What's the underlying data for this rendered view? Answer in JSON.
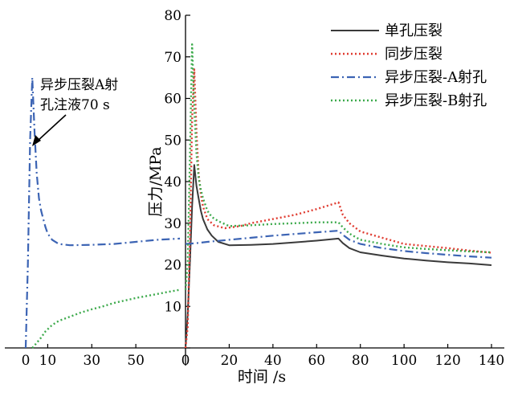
{
  "chart_data": {
    "type": "line",
    "title": "",
    "xlabel": "时间 /s",
    "ylabel": "压力/MPa",
    "ylim": [
      0,
      80
    ],
    "yticks": [
      "0",
      "10",
      "20",
      "30",
      "40",
      "50",
      "60",
      "70",
      "80"
    ],
    "x_left_segment": {
      "range": [
        0,
        70
      ],
      "tick_labels": [
        "0",
        "10",
        "30",
        "50"
      ],
      "tick_values": [
        0,
        10,
        30,
        50
      ]
    },
    "x_right_segment": {
      "range": [
        0,
        140
      ],
      "tick_labels": [
        "0",
        "20",
        "40",
        "60",
        "80",
        "100",
        "120",
        "140"
      ],
      "tick_values": [
        0,
        20,
        40,
        60,
        80,
        100,
        120,
        140
      ]
    },
    "grid": false,
    "legend_position": "top-right",
    "annotation": {
      "line1": "异步压裂A射",
      "line2": "孔注液70 s"
    },
    "series": [
      {
        "name": "单孔压裂",
        "segment": "right",
        "color": "#3a3a3a",
        "style": "solid",
        "points": [
          [
            0,
            0
          ],
          [
            1,
            8
          ],
          [
            2,
            20
          ],
          [
            3,
            34
          ],
          [
            4,
            44
          ],
          [
            5,
            39
          ],
          [
            6,
            36
          ],
          [
            7,
            33
          ],
          [
            8,
            31
          ],
          [
            10,
            28.5
          ],
          [
            12,
            27
          ],
          [
            15,
            25.5
          ],
          [
            20,
            24.7
          ],
          [
            30,
            24.8
          ],
          [
            40,
            25
          ],
          [
            50,
            25.4
          ],
          [
            60,
            25.8
          ],
          [
            70,
            26.3
          ],
          [
            72,
            25.2
          ],
          [
            75,
            24
          ],
          [
            80,
            23
          ],
          [
            90,
            22.2
          ],
          [
            100,
            21.5
          ],
          [
            110,
            21
          ],
          [
            120,
            20.6
          ],
          [
            130,
            20.3
          ],
          [
            140,
            19.9
          ]
        ]
      },
      {
        "name": "同步压裂",
        "segment": "right",
        "color": "#e03c31",
        "style": "dotted",
        "points": [
          [
            0,
            0
          ],
          [
            1,
            5
          ],
          [
            2,
            25
          ],
          [
            3,
            55
          ],
          [
            4,
            67
          ],
          [
            5,
            52
          ],
          [
            6,
            42
          ],
          [
            7,
            37
          ],
          [
            8,
            34
          ],
          [
            10,
            31
          ],
          [
            13,
            29.5
          ],
          [
            18,
            28.8
          ],
          [
            25,
            29.3
          ],
          [
            30,
            30
          ],
          [
            40,
            31
          ],
          [
            50,
            32
          ],
          [
            60,
            33.4
          ],
          [
            70,
            35
          ],
          [
            72,
            32
          ],
          [
            75,
            30
          ],
          [
            80,
            28
          ],
          [
            90,
            26.5
          ],
          [
            100,
            25
          ],
          [
            110,
            24.5
          ],
          [
            120,
            24
          ],
          [
            130,
            23.4
          ],
          [
            140,
            22.9
          ]
        ]
      },
      {
        "name": "异步压裂-A射孔",
        "segment": "both",
        "color": "#3c64b4",
        "style": "dashdot",
        "left_points": [
          [
            0,
            0
          ],
          [
            1,
            20
          ],
          [
            2,
            50
          ],
          [
            3,
            65
          ],
          [
            4,
            52
          ],
          [
            5,
            42
          ],
          [
            6,
            36
          ],
          [
            7,
            33
          ],
          [
            8,
            31
          ],
          [
            9,
            29
          ],
          [
            10,
            27.5
          ],
          [
            12,
            26
          ],
          [
            15,
            25
          ],
          [
            20,
            24.7
          ],
          [
            30,
            24.8
          ],
          [
            40,
            25
          ],
          [
            50,
            25.5
          ],
          [
            60,
            26
          ],
          [
            70,
            26.3
          ]
        ],
        "points": [
          [
            0,
            25
          ],
          [
            5,
            25.2
          ],
          [
            10,
            25.5
          ],
          [
            20,
            26
          ],
          [
            30,
            26.5
          ],
          [
            40,
            27
          ],
          [
            50,
            27.4
          ],
          [
            60,
            27.8
          ],
          [
            70,
            28.2
          ],
          [
            72,
            27.2
          ],
          [
            75,
            26
          ],
          [
            80,
            25
          ],
          [
            90,
            24
          ],
          [
            100,
            23.3
          ],
          [
            110,
            22.8
          ],
          [
            120,
            22.4
          ],
          [
            130,
            22
          ],
          [
            140,
            21.7
          ]
        ]
      },
      {
        "name": "异步压裂-B射孔",
        "segment": "both",
        "color": "#3daa4c",
        "style": "dotted",
        "left_points": [
          [
            3,
            0
          ],
          [
            5,
            1.2
          ],
          [
            7,
            2.5
          ],
          [
            9,
            4
          ],
          [
            12,
            5.5
          ],
          [
            15,
            6.5
          ],
          [
            20,
            7.5
          ],
          [
            25,
            8.5
          ],
          [
            30,
            9.3
          ],
          [
            35,
            10
          ],
          [
            40,
            10.8
          ],
          [
            45,
            11.4
          ],
          [
            50,
            12
          ],
          [
            55,
            12.5
          ],
          [
            60,
            13
          ],
          [
            65,
            13.5
          ],
          [
            70,
            14
          ]
        ],
        "points": [
          [
            0,
            14
          ],
          [
            1,
            20
          ],
          [
            2,
            45
          ],
          [
            3,
            73
          ],
          [
            4,
            58
          ],
          [
            5,
            47
          ],
          [
            6,
            41
          ],
          [
            7,
            38
          ],
          [
            8,
            36
          ],
          [
            10,
            33
          ],
          [
            12,
            31.5
          ],
          [
            15,
            30.5
          ],
          [
            20,
            29.3
          ],
          [
            30,
            29.5
          ],
          [
            40,
            29.8
          ],
          [
            50,
            30
          ],
          [
            60,
            30.2
          ],
          [
            70,
            30.2
          ],
          [
            72,
            29
          ],
          [
            75,
            27.5
          ],
          [
            80,
            26
          ],
          [
            90,
            25
          ],
          [
            100,
            24.2
          ],
          [
            110,
            23.8
          ],
          [
            120,
            23.5
          ],
          [
            130,
            23.2
          ],
          [
            140,
            23
          ]
        ]
      }
    ]
  }
}
